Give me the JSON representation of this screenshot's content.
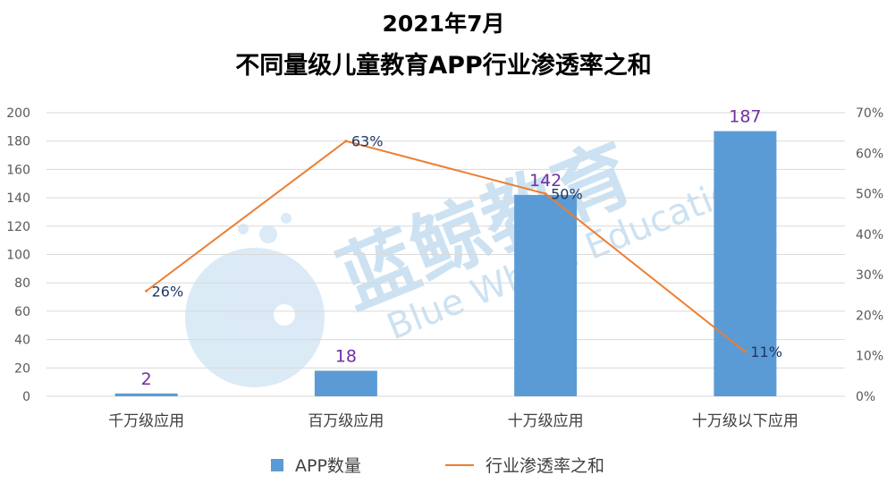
{
  "title_line1": "2021年7月",
  "title_line2": "不同量级儿童教育APP行业渗透率之和",
  "watermark": {
    "cn": "蓝鲸教育",
    "en": "Blue Whale Education"
  },
  "colors": {
    "bar": "#5B9BD5",
    "line": "#ED7D31",
    "grid": "#D9D9D9",
    "bar_label": "#7030A0",
    "pct_label": "#1F3864"
  },
  "chart_data": {
    "type": "bar",
    "categories": [
      "千万级应用",
      "百万级应用",
      "十万级应用",
      "十万级以下应用"
    ],
    "series": [
      {
        "name": "APP数量",
        "type": "bar",
        "axis": "left",
        "values": [
          2,
          18,
          142,
          187
        ],
        "labels": [
          "2",
          "18",
          "142",
          "187"
        ]
      },
      {
        "name": "行业渗透率之和",
        "type": "line",
        "axis": "right",
        "values": [
          26,
          63,
          50,
          11
        ],
        "labels": [
          "26%",
          "63%",
          "50%",
          "11%"
        ]
      }
    ],
    "y_left": {
      "min": 0,
      "max": 200,
      "ticks": [
        "0",
        "20",
        "40",
        "60",
        "80",
        "100",
        "120",
        "140",
        "160",
        "180",
        "200"
      ]
    },
    "y_right": {
      "min": 0,
      "max": 70,
      "ticks": [
        "0%",
        "10%",
        "20%",
        "30%",
        "40%",
        "50%",
        "60%",
        "70%"
      ]
    },
    "grid": true,
    "legend_position": "bottom"
  }
}
